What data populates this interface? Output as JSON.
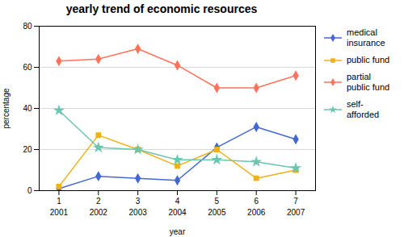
{
  "chart_data": {
    "type": "line",
    "title": "yearly trend of economic resources",
    "xlabel": "year",
    "ylabel": "percentage",
    "x": [
      1,
      2,
      3,
      4,
      5,
      6,
      7
    ],
    "xlim": [
      0.5,
      7.5
    ],
    "xticks": [
      1,
      2,
      3,
      4,
      5,
      6,
      7
    ],
    "x2lim": [
      0.5,
      7.5
    ],
    "x2ticks": [
      {
        "value": 1,
        "label": "2001"
      },
      {
        "value": 2,
        "label": "2002"
      },
      {
        "value": 3,
        "label": "2003"
      },
      {
        "value": 4,
        "label": "2004"
      },
      {
        "value": 5,
        "label": "2005"
      },
      {
        "value": 6,
        "label": "2006"
      },
      {
        "value": 7,
        "label": "2007"
      }
    ],
    "ylim": [
      0,
      80
    ],
    "yticks": [
      0,
      20,
      40,
      60,
      80
    ],
    "grid": true,
    "legend": "right",
    "series": [
      {
        "name": "medical\ninsurance",
        "marker": "diamond",
        "values": [
          1,
          7,
          6,
          5,
          21,
          31,
          25
        ]
      },
      {
        "name": "public fund",
        "marker": "square",
        "values": [
          2,
          27,
          20,
          12,
          20,
          6,
          10
        ]
      },
      {
        "name": "partial\npublic fund",
        "marker": "diamond",
        "values": [
          63,
          64,
          69,
          61,
          50,
          50,
          56
        ]
      },
      {
        "name": "self-\nafforded",
        "marker": "star",
        "values": [
          39,
          21,
          20,
          15,
          15,
          14,
          11
        ]
      }
    ]
  }
}
